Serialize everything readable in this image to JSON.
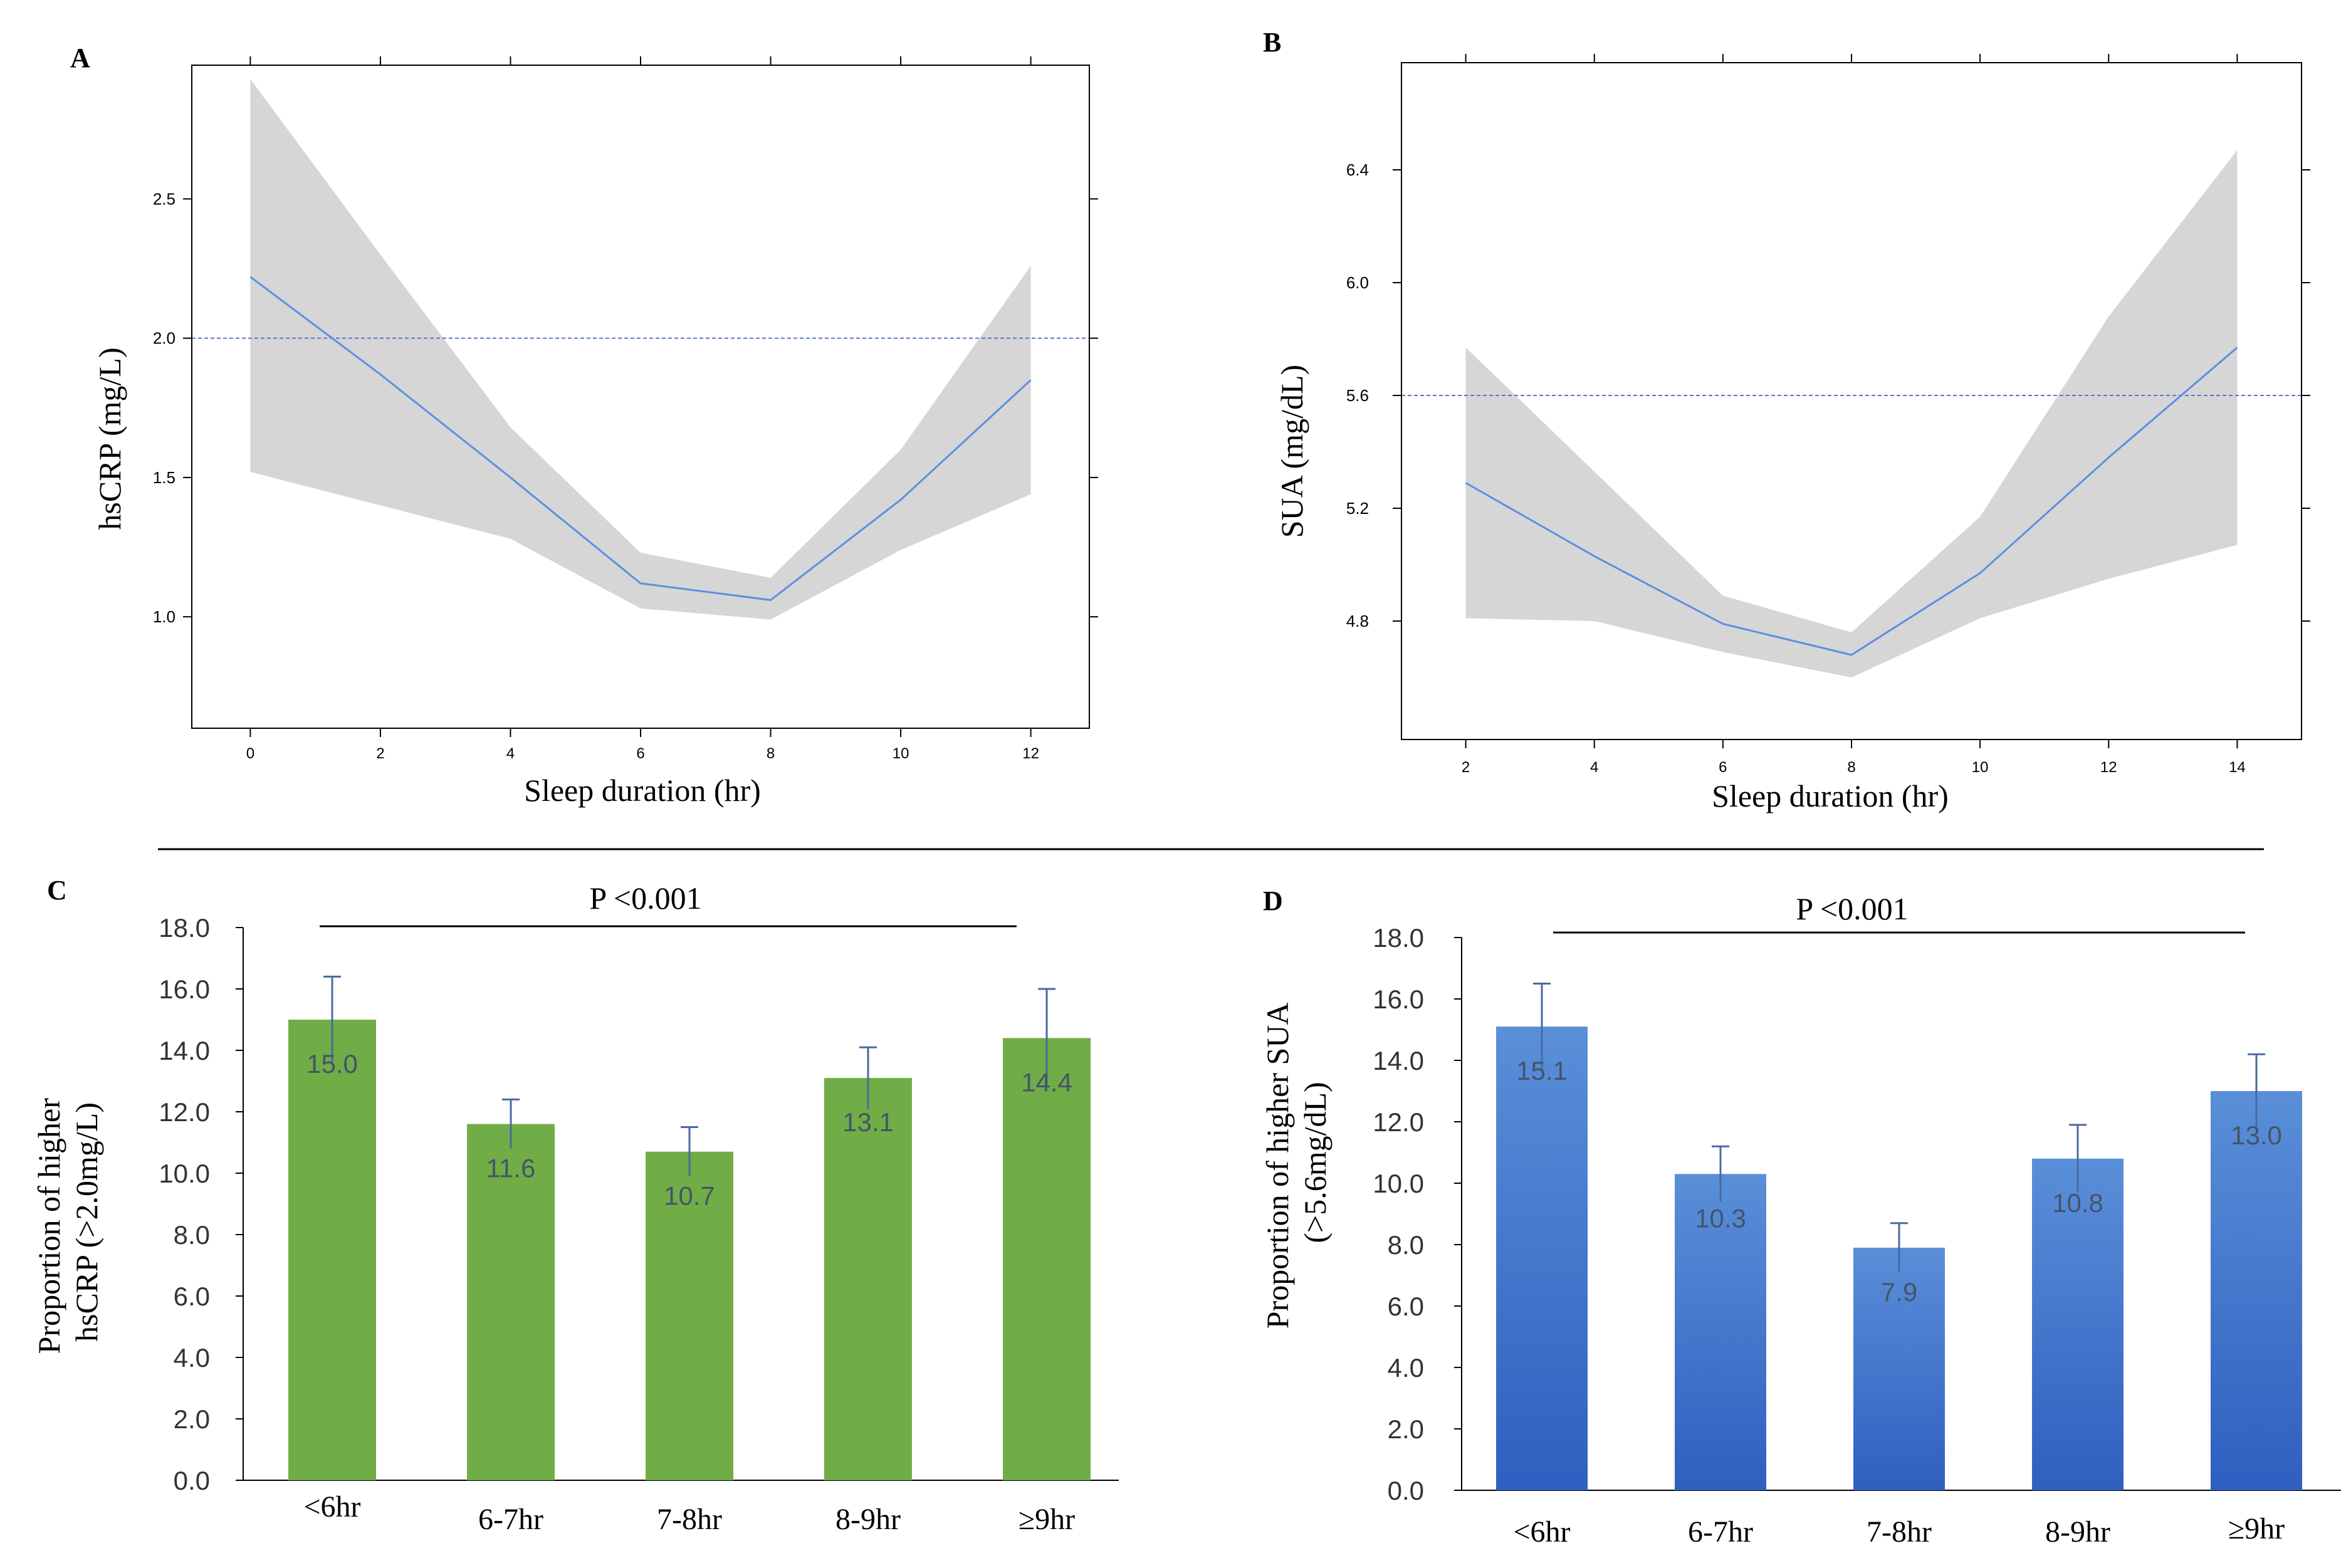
{
  "colors": {
    "band": "#d6d6d6",
    "line": "#5b8fe0",
    "refline": "#5a78c8",
    "axis": "#000000",
    "greenBar": "#70ad47",
    "blueTop": "#5a8fd8",
    "blueBottom": "#2f5fc0",
    "valueLabel": "#44546a",
    "error": "#4a6aa0"
  },
  "chart_data": [
    {
      "panel": "A",
      "type": "line",
      "title": "",
      "xlabel": "Sleep duration (hr)",
      "ylabel": "hsCRP (mg/L)",
      "xlim": [
        -0.9,
        12.9
      ],
      "ylim": [
        0.6,
        2.98
      ],
      "xticks": [
        0,
        2,
        4,
        6,
        8,
        10,
        12
      ],
      "xtick_labels": [
        "0",
        "2",
        "4",
        "6",
        "8",
        "10",
        "12"
      ],
      "yticks": [
        1.0,
        1.5,
        2.0,
        2.5
      ],
      "ytick_labels": [
        "1.0",
        "1.5",
        "2.0",
        "2.5"
      ],
      "reference_line": 2.0,
      "x": [
        0,
        2,
        4,
        6,
        8,
        10,
        12
      ],
      "y": [
        2.22,
        1.87,
        1.5,
        1.12,
        1.06,
        1.42,
        1.85
      ],
      "lower": [
        1.52,
        1.4,
        1.28,
        1.03,
        0.99,
        1.24,
        1.44
      ],
      "upper": [
        2.93,
        2.3,
        1.68,
        1.23,
        1.14,
        1.6,
        2.26
      ]
    },
    {
      "panel": "B",
      "type": "line",
      "title": "",
      "xlabel": "Sleep duration (hr)",
      "ylabel": "SUA (mg/dL)",
      "xlim": [
        1.0,
        15.0
      ],
      "ylim": [
        4.38,
        6.78
      ],
      "xticks": [
        2,
        4,
        6,
        8,
        10,
        12,
        14
      ],
      "xtick_labels": [
        "2",
        "4",
        "6",
        "8",
        "10",
        "12",
        "14"
      ],
      "yticks": [
        4.8,
        5.2,
        5.6,
        6.0,
        6.4
      ],
      "ytick_labels": [
        "4.8",
        "5.2",
        "5.6",
        "6.0",
        "6.4"
      ],
      "reference_line": 5.6,
      "x": [
        2,
        4,
        6,
        8,
        10,
        12,
        14
      ],
      "y": [
        5.29,
        5.03,
        4.79,
        4.68,
        4.97,
        5.38,
        5.77
      ],
      "lower": [
        4.81,
        4.8,
        4.69,
        4.6,
        4.81,
        4.95,
        5.07
      ],
      "upper": [
        5.77,
        5.33,
        4.89,
        4.76,
        5.17,
        5.88,
        6.47
      ]
    },
    {
      "panel": "C",
      "type": "bar",
      "title": "",
      "xlabel": "",
      "ylabel": [
        "Proportion of  higher",
        "hsCRP (>2.0mg/L)"
      ],
      "ylim": [
        0,
        18
      ],
      "yticks": [
        0,
        2,
        4,
        6,
        8,
        10,
        12,
        14,
        16,
        18
      ],
      "ytick_labels": [
        "0.0",
        "2.0",
        "4.0",
        "6.0",
        "8.0",
        "10.0",
        "12.0",
        "14.0",
        "16.0",
        "18.0"
      ],
      "categories": [
        "<6hr",
        "6-7hr",
        "7-8hr",
        "8-9hr",
        "≥9hr"
      ],
      "values": [
        15.0,
        11.6,
        10.7,
        13.1,
        14.4
      ],
      "value_labels": [
        "15.0",
        "11.6",
        "10.7",
        "13.1",
        "14.4"
      ],
      "error": [
        1.4,
        0.8,
        0.8,
        1.0,
        1.6
      ],
      "significance": "P <0.001"
    },
    {
      "panel": "D",
      "type": "bar",
      "title": "",
      "xlabel": "",
      "ylabel": [
        "Proportion of  higher SUA",
        "(>5.6mg/dL)"
      ],
      "ylim": [
        0,
        18
      ],
      "yticks": [
        0,
        2,
        4,
        6,
        8,
        10,
        12,
        14,
        16,
        18
      ],
      "ytick_labels": [
        "0.0",
        "2.0",
        "4.0",
        "6.0",
        "8.0",
        "10.0",
        "12.0",
        "14.0",
        "16.0",
        "18.0"
      ],
      "categories": [
        "<6hr",
        "6-7hr",
        "7-8hr",
        "8-9hr",
        "≥9hr"
      ],
      "values": [
        15.1,
        10.3,
        7.9,
        10.8,
        13.0
      ],
      "value_labels": [
        "15.1",
        "10.3",
        "7.9",
        "10.8",
        "13.0"
      ],
      "error": [
        1.4,
        0.9,
        0.8,
        1.1,
        1.2
      ],
      "significance": "P <0.001"
    }
  ]
}
